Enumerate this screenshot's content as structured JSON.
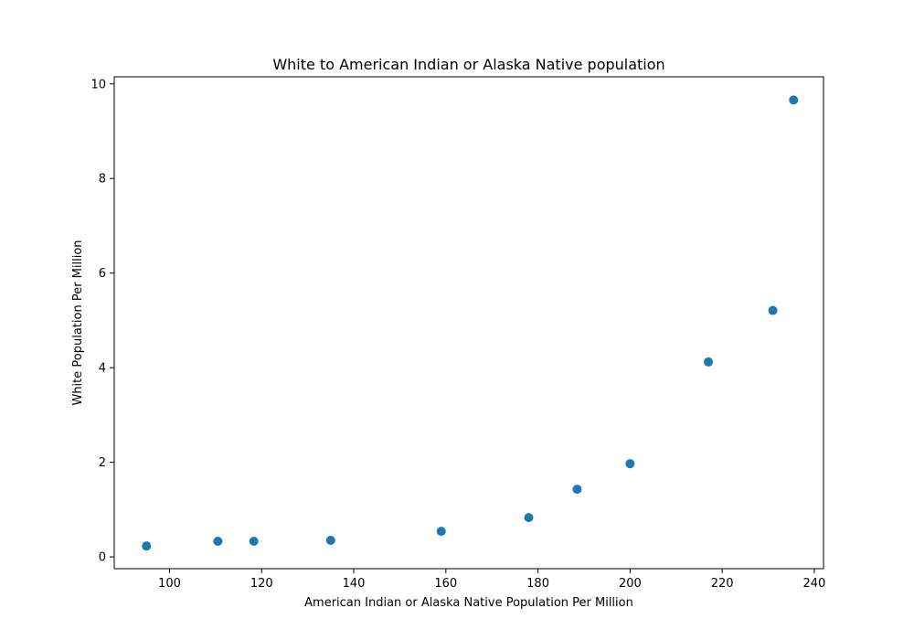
{
  "chart_data": {
    "type": "scatter",
    "title": "White to American Indian or Alaska Native population",
    "xlabel": "American Indian or Alaska Native Population Per Million",
    "ylabel": "White Population Per Million",
    "xlim": [
      88,
      242
    ],
    "ylim": [
      -0.25,
      10.15
    ],
    "xticks": [
      100,
      120,
      140,
      160,
      180,
      200,
      220,
      240
    ],
    "yticks": [
      0,
      2,
      4,
      6,
      8,
      10
    ],
    "grid": false,
    "color": "#1f77b4",
    "points": [
      {
        "x": 95.0,
        "y": 0.23
      },
      {
        "x": 110.5,
        "y": 0.33
      },
      {
        "x": 118.3,
        "y": 0.33
      },
      {
        "x": 135.0,
        "y": 0.35
      },
      {
        "x": 159.0,
        "y": 0.54
      },
      {
        "x": 178.0,
        "y": 0.83
      },
      {
        "x": 188.5,
        "y": 1.43
      },
      {
        "x": 200.0,
        "y": 1.97
      },
      {
        "x": 217.0,
        "y": 4.12
      },
      {
        "x": 231.0,
        "y": 5.21
      },
      {
        "x": 235.5,
        "y": 9.66
      }
    ]
  }
}
